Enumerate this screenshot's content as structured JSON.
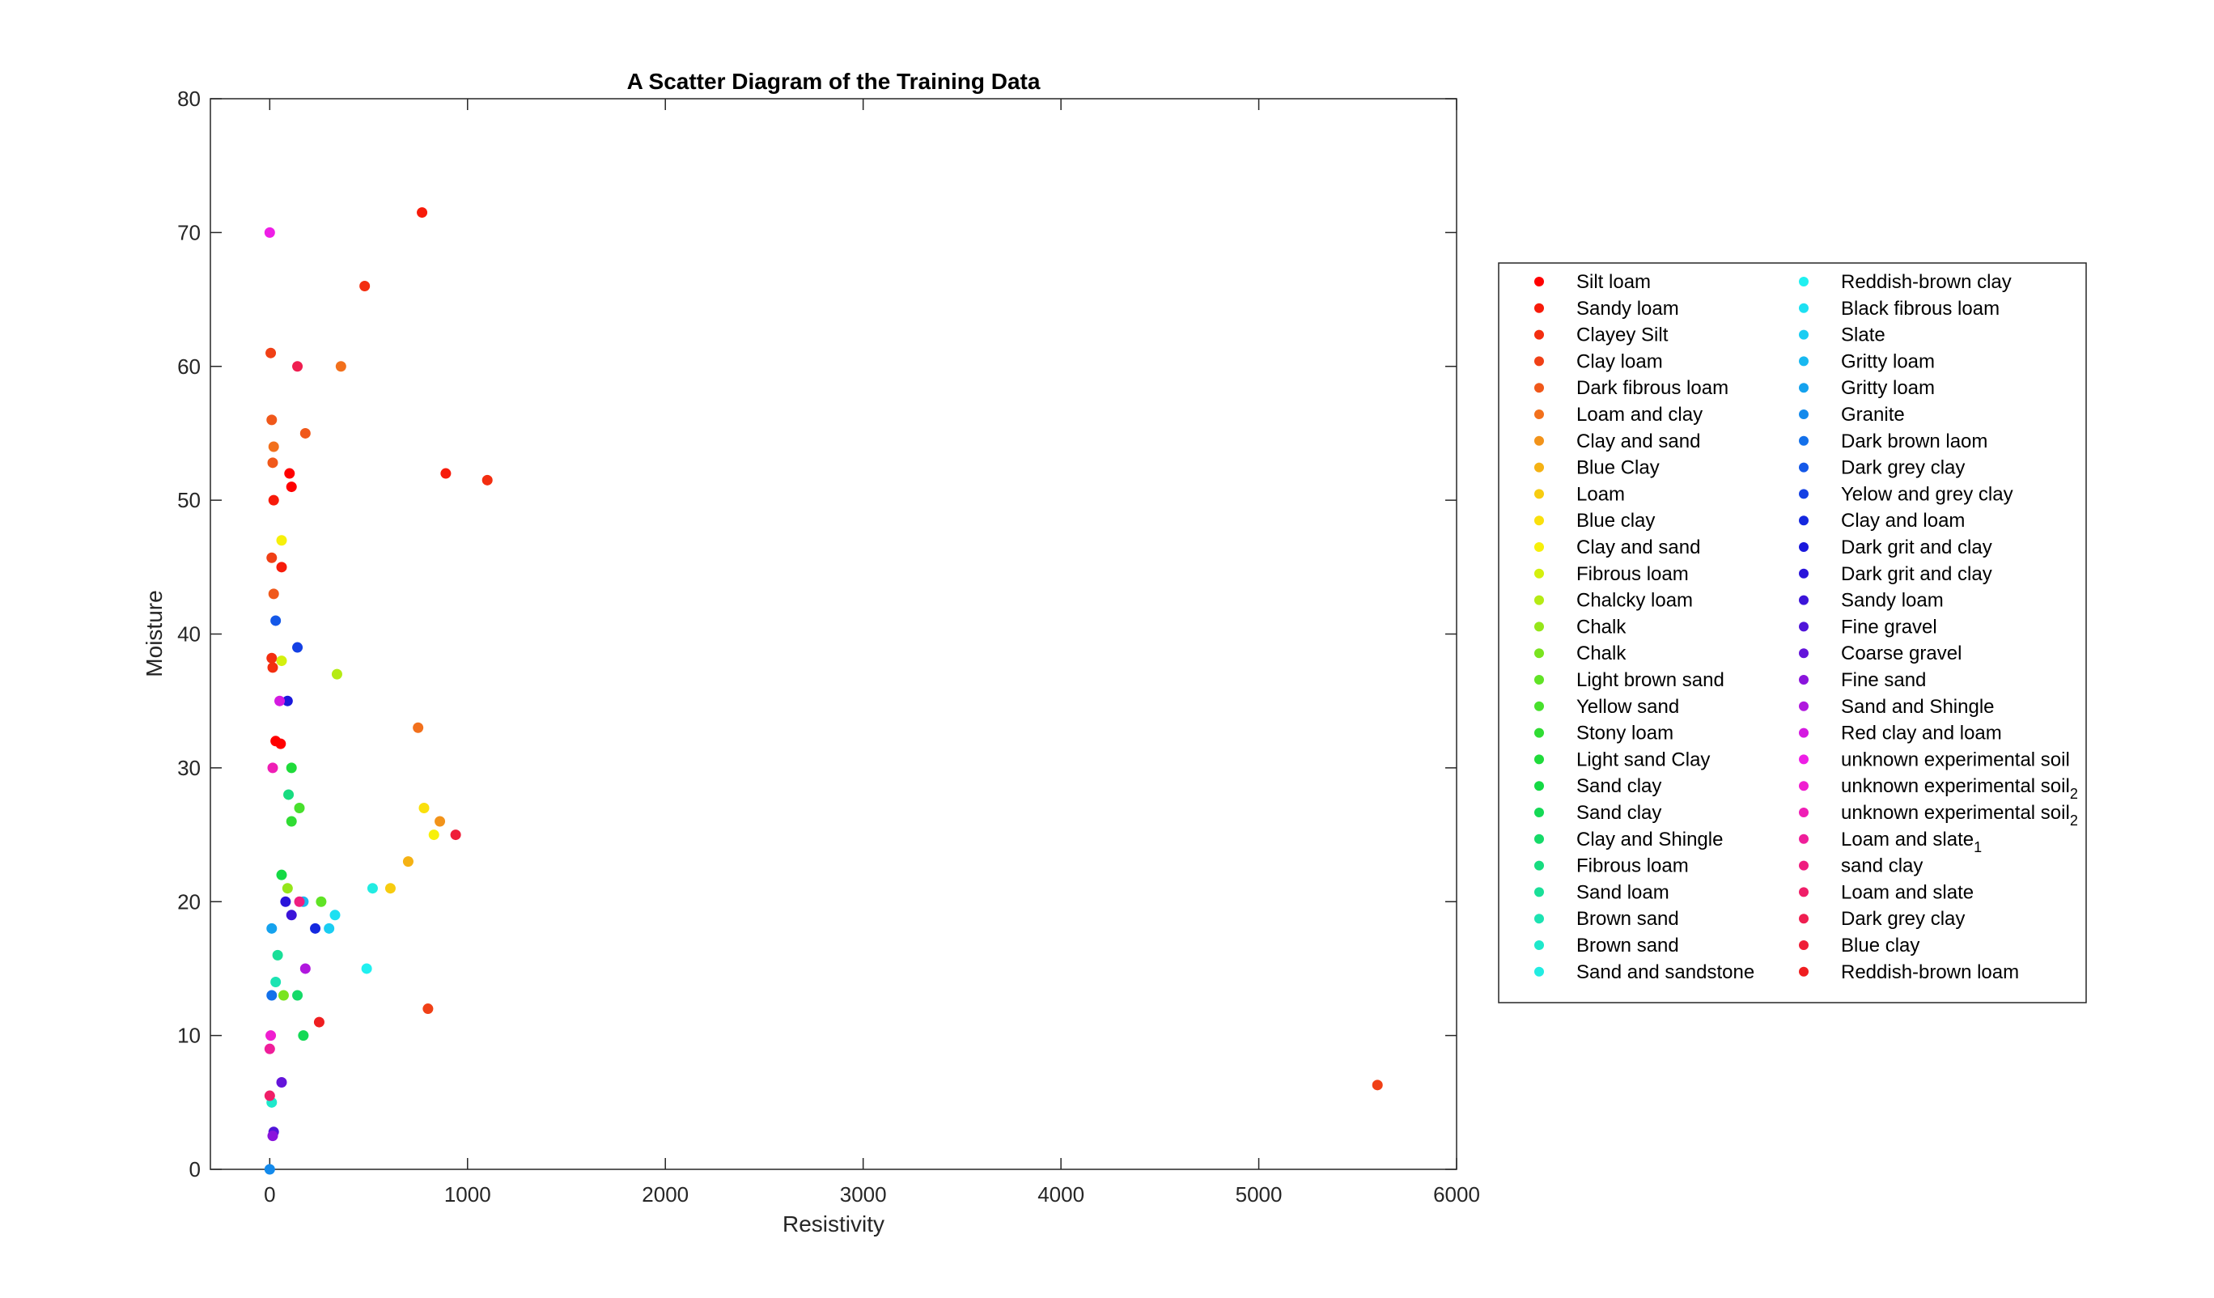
{
  "chart_data": {
    "type": "scatter",
    "title": "A Scatter Diagram of the Training Data",
    "xlabel": "Resistivity",
    "ylabel": "Moisture",
    "xlim": [
      -300,
      6000
    ],
    "ylim": [
      0,
      80
    ],
    "xticks": [
      0,
      1000,
      2000,
      3000,
      4000,
      5000,
      6000
    ],
    "yticks": [
      0,
      10,
      20,
      30,
      40,
      50,
      60,
      70,
      80
    ],
    "grid": false,
    "legend_position": "right",
    "series": [
      {
        "name": "Silt loam",
        "color": "#ff0000",
        "points": [
          [
            30,
            32
          ],
          [
            55,
            31.8
          ],
          [
            100,
            52
          ],
          [
            110,
            51
          ]
        ]
      },
      {
        "name": "Sandy loam",
        "color": "#f71b0a",
        "points": [
          [
            20,
            50
          ],
          [
            60,
            45
          ],
          [
            770,
            71.5
          ],
          [
            890,
            52
          ]
        ]
      },
      {
        "name": "Clayey Silt",
        "color": "#f32e10",
        "points": [
          [
            10,
            38.2
          ],
          [
            15,
            37.5
          ],
          [
            480,
            66
          ],
          [
            1100,
            51.5
          ]
        ]
      },
      {
        "name": "Clay loam",
        "color": "#f04016",
        "points": [
          [
            5,
            61
          ],
          [
            10,
            45.7
          ],
          [
            5600,
            6.3
          ],
          [
            800,
            12
          ]
        ]
      },
      {
        "name": "Dark fibrous loam",
        "color": "#f0581a",
        "points": [
          [
            10,
            56
          ],
          [
            15,
            52.8
          ],
          [
            20,
            43
          ],
          [
            180,
            55
          ]
        ]
      },
      {
        "name": "Loam and clay",
        "color": "#f2701c",
        "points": [
          [
            20,
            54
          ],
          [
            360,
            60
          ],
          [
            750,
            33
          ]
        ]
      },
      {
        "name": "Clay and sand",
        "color": "#f2931a",
        "points": [
          [
            860,
            26
          ]
        ]
      },
      {
        "name": "Blue Clay",
        "color": "#f5b214",
        "points": [
          [
            700,
            23
          ]
        ]
      },
      {
        "name": "Loam",
        "color": "#f7cc10",
        "points": [
          [
            610,
            21
          ]
        ]
      },
      {
        "name": "Blue clay",
        "color": "#fae00c",
        "points": [
          [
            780,
            27
          ]
        ]
      },
      {
        "name": "Clay and sand",
        "color": "#f7f00a",
        "points": [
          [
            830,
            25
          ],
          [
            60,
            47
          ]
        ]
      },
      {
        "name": "Fibrous loam",
        "color": "#d4f00e",
        "points": [
          [
            60,
            38
          ]
        ]
      },
      {
        "name": "Chalcky loam",
        "color": "#b5eb14",
        "points": [
          [
            340,
            37
          ]
        ]
      },
      {
        "name": "Chalk",
        "color": "#95e61a",
        "points": [
          [
            90,
            21
          ]
        ]
      },
      {
        "name": "Chalk",
        "color": "#7ae41f",
        "points": [
          [
            70,
            13
          ]
        ]
      },
      {
        "name": "Light brown sand",
        "color": "#60e325",
        "points": [
          [
            260,
            20
          ]
        ]
      },
      {
        "name": "Yellow sand",
        "color": "#47e02c",
        "points": [
          [
            150,
            27
          ]
        ]
      },
      {
        "name": "Stony loam",
        "color": "#30dc33",
        "points": [
          [
            110,
            26
          ]
        ]
      },
      {
        "name": "Light sand Clay",
        "color": "#1fdb3a",
        "points": [
          [
            110,
            30
          ]
        ]
      },
      {
        "name": "Sand clay",
        "color": "#14d944",
        "points": [
          [
            60,
            22
          ]
        ]
      },
      {
        "name": "Sand clay",
        "color": "#14d955",
        "points": [
          [
            170,
            10
          ]
        ]
      },
      {
        "name": "Clay and Shingle",
        "color": "#15da68",
        "points": [
          [
            140,
            13
          ]
        ]
      },
      {
        "name": "Fibrous loam",
        "color": "#17dc80",
        "points": [
          [
            95,
            28
          ]
        ]
      },
      {
        "name": "Sand loam",
        "color": "#1adf98",
        "points": [
          [
            40,
            16
          ]
        ]
      },
      {
        "name": "Brown sand",
        "color": "#1ce3b2",
        "points": [
          [
            30,
            14
          ]
        ]
      },
      {
        "name": "Brown sand",
        "color": "#1ee8cb",
        "points": [
          [
            10,
            5
          ]
        ]
      },
      {
        "name": "Sand and sandstone",
        "color": "#22ece2",
        "points": [
          [
            520,
            21
          ]
        ]
      },
      {
        "name": "Reddish-brown clay",
        "color": "#20f0f0",
        "points": [
          [
            490,
            15
          ]
        ]
      },
      {
        "name": "Black fibrous loam",
        "color": "#1de0f2",
        "points": [
          [
            330,
            19
          ]
        ]
      },
      {
        "name": "Slate",
        "color": "#1acdf2",
        "points": [
          [
            300,
            18
          ]
        ]
      },
      {
        "name": "Gritty loam",
        "color": "#18b8f0",
        "points": [
          [
            170,
            20
          ]
        ]
      },
      {
        "name": "Gritty loam",
        "color": "#15a2ee",
        "points": [
          [
            10,
            18
          ]
        ]
      },
      {
        "name": "Granite",
        "color": "#138aec",
        "points": [
          [
            0,
            0
          ]
        ]
      },
      {
        "name": "Dark brown laom",
        "color": "#1370ea",
        "points": [
          [
            10,
            13
          ]
        ]
      },
      {
        "name": "Dark grey clay",
        "color": "#1458e8",
        "points": [
          [
            30,
            41
          ]
        ]
      },
      {
        "name": "Yelow and grey clay",
        "color": "#1440e4",
        "points": [
          [
            140,
            39
          ]
        ]
      },
      {
        "name": "Clay and loam",
        "color": "#1428df",
        "points": [
          [
            230,
            18
          ]
        ]
      },
      {
        "name": "Dark grit and clay",
        "color": "#1a18dc",
        "points": [
          [
            90,
            35
          ]
        ]
      },
      {
        "name": "Dark grit and clay",
        "color": "#2a14da",
        "points": [
          [
            80,
            20
          ]
        ]
      },
      {
        "name": "Sandy loam",
        "color": "#3b14d9",
        "points": [
          [
            110,
            19
          ]
        ]
      },
      {
        "name": "Fine gravel",
        "color": "#5014d9",
        "points": [
          [
            20,
            2.8
          ]
        ]
      },
      {
        "name": "Coarse gravel",
        "color": "#6414da",
        "points": [
          [
            60,
            6.5
          ]
        ]
      },
      {
        "name": "Fine sand",
        "color": "#8a14dc",
        "points": [
          [
            15,
            2.5
          ]
        ]
      },
      {
        "name": "Sand and Shingle",
        "color": "#b017de",
        "points": [
          [
            180,
            15
          ]
        ]
      },
      {
        "name": "Red clay and loam",
        "color": "#d41ae0",
        "points": [
          [
            50,
            35
          ]
        ]
      },
      {
        "name": "unknown experimental soil",
        "color": "#ee1ee6",
        "points": [
          [
            0,
            70
          ]
        ]
      },
      {
        "name": "unknown experimental soil",
        "color": "#ef1ed0",
        "points": [
          [
            5,
            10
          ]
        ]
      },
      {
        "name": "unknown experimental soil",
        "color": "#ef1eb5",
        "points": [
          [
            15,
            30
          ]
        ]
      },
      {
        "name": "Loam  and slate",
        "color": "#ef1e9a",
        "points": [
          [
            0,
            9
          ]
        ]
      },
      {
        "name": "sand clay",
        "color": "#ef1e80",
        "points": [
          [
            150,
            20
          ]
        ]
      },
      {
        "name": "Loam  and slate",
        "color": "#ef1e68",
        "points": [
          [
            0,
            5.5
          ]
        ]
      },
      {
        "name": "Dark grey clay",
        "color": "#ef1e50",
        "points": [
          [
            140,
            60
          ]
        ]
      },
      {
        "name": "Blue clay",
        "color": "#ef1e38",
        "points": [
          [
            940,
            25
          ]
        ]
      },
      {
        "name": "Reddish-brown loam",
        "color": "#ef1e20",
        "points": [
          [
            250,
            11
          ]
        ]
      }
    ],
    "legend_subscripts": {
      "46": "2",
      "47": "2",
      "48": "1"
    }
  }
}
